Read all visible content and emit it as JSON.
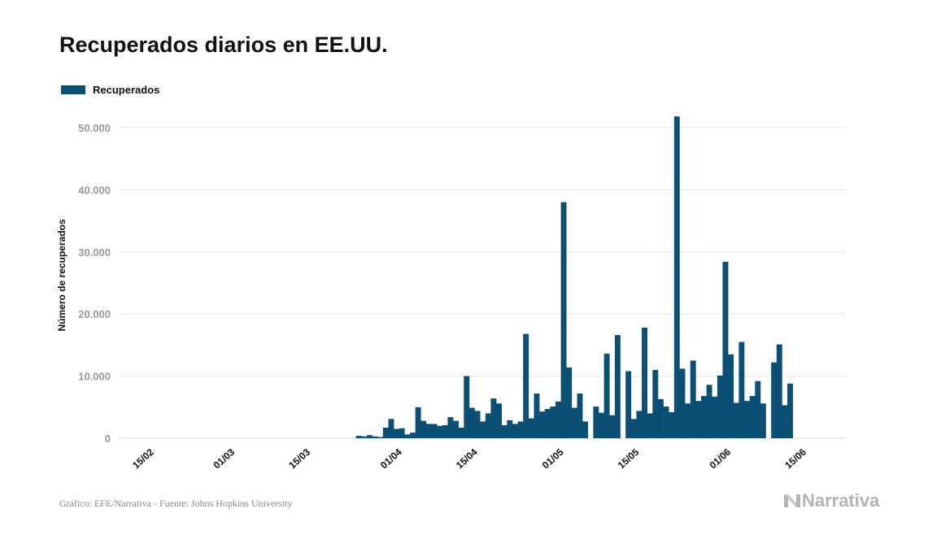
{
  "title": "Recuperados diarios en EE.UU.",
  "legend": {
    "label": "Recuperados",
    "color": "#0b4f75"
  },
  "source": "Gráfico: EFE/Narrativa - Fuente: Johns Hopkins University",
  "brand": {
    "name": "Narrativa",
    "icon": "narrativa-logo-icon"
  },
  "chart_data": {
    "type": "bar",
    "title": "Recuperados diarios en EE.UU.",
    "ylabel": "Número de recuperados",
    "xlabel": "",
    "ylim": [
      0,
      53000
    ],
    "yticks": [
      0,
      10000,
      20000,
      30000,
      40000,
      50000
    ],
    "ytick_labels": [
      "0",
      "10.000",
      "20.000",
      "30.000",
      "40.000",
      "50.000"
    ],
    "xticks": [
      "2020-02-15",
      "2020-03-01",
      "2020-03-15",
      "2020-04-01",
      "2020-04-15",
      "2020-05-01",
      "2020-05-15",
      "2020-06-01",
      "2020-06-15"
    ],
    "xtick_labels": [
      "15/02",
      "01/03",
      "15/03",
      "01/04",
      "15/04",
      "01/05",
      "15/05",
      "01/06",
      "15/06"
    ],
    "x_start": "2020-02-09",
    "x_end": "2020-06-23",
    "grid": true,
    "legend_position": "top-left",
    "series": [
      {
        "name": "Recuperados",
        "color": "#0b4f75",
        "x": [
          "2020-03-24",
          "2020-03-25",
          "2020-03-26",
          "2020-03-27",
          "2020-03-28",
          "2020-03-29",
          "2020-03-30",
          "2020-03-31",
          "2020-04-01",
          "2020-04-02",
          "2020-04-03",
          "2020-04-04",
          "2020-04-05",
          "2020-04-06",
          "2020-04-07",
          "2020-04-08",
          "2020-04-09",
          "2020-04-10",
          "2020-04-11",
          "2020-04-12",
          "2020-04-13",
          "2020-04-14",
          "2020-04-15",
          "2020-04-16",
          "2020-04-17",
          "2020-04-18",
          "2020-04-19",
          "2020-04-20",
          "2020-04-21",
          "2020-04-22",
          "2020-04-23",
          "2020-04-24",
          "2020-04-25",
          "2020-04-26",
          "2020-04-27",
          "2020-04-28",
          "2020-04-29",
          "2020-04-30",
          "2020-05-01",
          "2020-05-02",
          "2020-05-03",
          "2020-05-04",
          "2020-05-05",
          "2020-05-06",
          "2020-05-07",
          "2020-05-08",
          "2020-05-09",
          "2020-05-10",
          "2020-05-11",
          "2020-05-12",
          "2020-05-13",
          "2020-05-14",
          "2020-05-15",
          "2020-05-16",
          "2020-05-17",
          "2020-05-18",
          "2020-05-19",
          "2020-05-20",
          "2020-05-21",
          "2020-05-22",
          "2020-05-23",
          "2020-05-24",
          "2020-05-25",
          "2020-05-26",
          "2020-05-27",
          "2020-05-28",
          "2020-05-29",
          "2020-05-30",
          "2020-05-31",
          "2020-06-01",
          "2020-06-02",
          "2020-06-03",
          "2020-06-04",
          "2020-06-05",
          "2020-06-06",
          "2020-06-07",
          "2020-06-08",
          "2020-06-09",
          "2020-06-10",
          "2020-06-11",
          "2020-06-12",
          "2020-06-13"
        ],
        "values": [
          400,
          300,
          500,
          300,
          200,
          1700,
          3100,
          1500,
          1600,
          600,
          900,
          5000,
          2800,
          2300,
          2300,
          2000,
          2100,
          3400,
          2800,
          1700,
          10000,
          4900,
          4400,
          2700,
          4000,
          6400,
          5600,
          2100,
          2900,
          2300,
          2700,
          16800,
          3200,
          7200,
          4300,
          4700,
          5100,
          5900,
          38000,
          11400,
          4900,
          7200,
          2700,
          0,
          5100,
          4100,
          13600,
          3700,
          16600,
          0,
          10800,
          3100,
          4400,
          17800,
          4000,
          11000,
          6300,
          5100,
          4200,
          51800,
          11200,
          5600,
          12500,
          6000,
          6800,
          8600,
          6700,
          10100,
          28400,
          13500,
          5700,
          15500,
          6000,
          6800,
          9200,
          5600,
          0,
          12200,
          15100,
          5300,
          8800,
          0
        ]
      }
    ]
  }
}
